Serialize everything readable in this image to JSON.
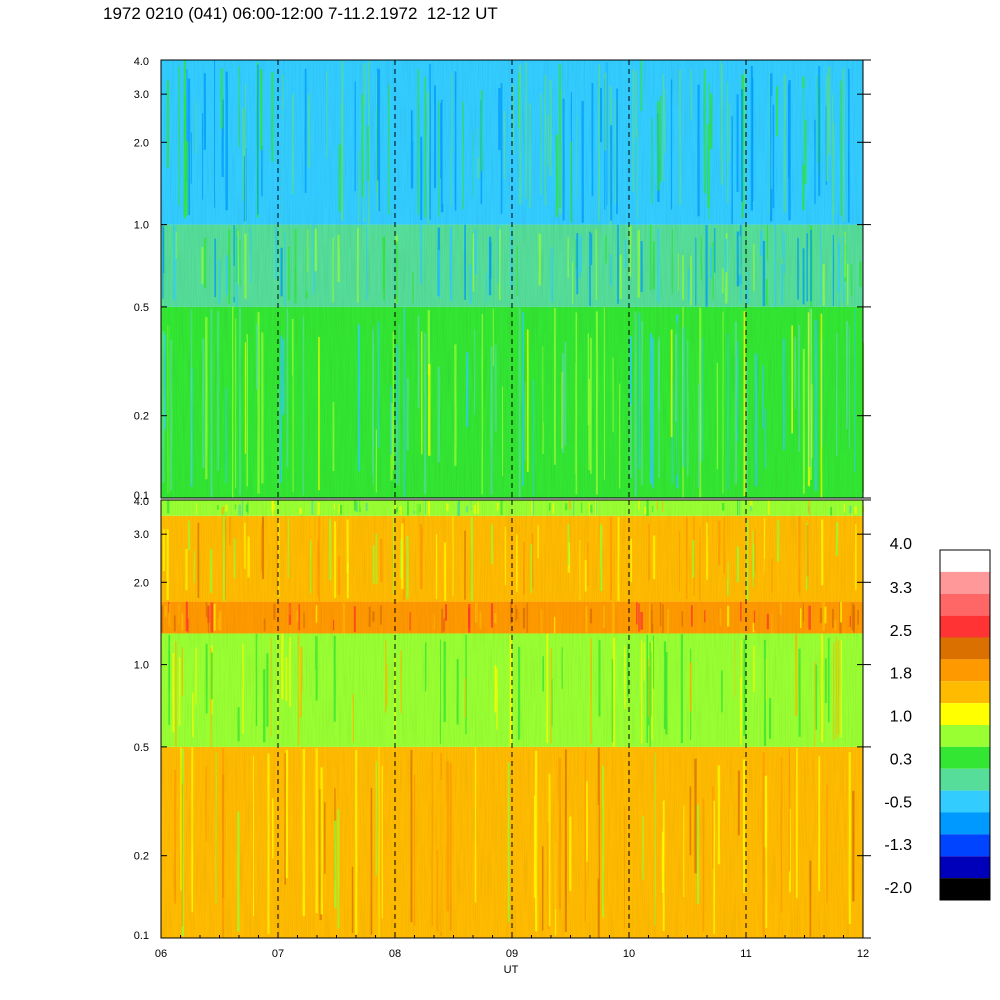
{
  "title": "1972 0210 (041) 06:00-12:00 7-11.2.1972  12-12 UT",
  "chart_data": [
    {
      "type": "heatmap",
      "panel": "top",
      "x_range": [
        6,
        12
      ],
      "y_scale": "log",
      "y_range": [
        0.1,
        4.0
      ],
      "y_ticks": [
        "0.1",
        "0.2",
        "0.5",
        "1.0",
        "2.0",
        "3.0",
        "4.0"
      ],
      "y_tick_values": [
        0.1,
        0.2,
        0.5,
        1.0,
        2.0,
        3.0,
        4.0
      ],
      "vertical_reference_lines_at": [
        7,
        8,
        9,
        10,
        11
      ],
      "dominant_level_by_band": [
        {
          "freq_from": 0.1,
          "freq_to": 0.5,
          "level": 0.3
        },
        {
          "freq_from": 0.5,
          "freq_to": 1.0,
          "level": 0.0
        },
        {
          "freq_from": 1.0,
          "freq_to": 4.0,
          "level": -0.2
        }
      ]
    },
    {
      "type": "heatmap",
      "panel": "bottom",
      "x_range": [
        6,
        12
      ],
      "y_scale": "log",
      "y_range": [
        0.1,
        4.0
      ],
      "y_ticks": [
        "0.1",
        "0.2",
        "0.5",
        "1.0",
        "2.0",
        "3.0",
        "4.0"
      ],
      "y_tick_values": [
        0.1,
        0.2,
        0.5,
        1.0,
        2.0,
        3.0,
        4.0
      ],
      "vertical_reference_lines_at": [
        7,
        8,
        9,
        10,
        11
      ],
      "dominant_level_by_band": [
        {
          "freq_from": 0.1,
          "freq_to": 0.5,
          "level": 1.6
        },
        {
          "freq_from": 0.5,
          "freq_to": 1.3,
          "level": 1.0
        },
        {
          "freq_from": 1.3,
          "freq_to": 1.7,
          "level": 2.0
        },
        {
          "freq_from": 1.7,
          "freq_to": 3.5,
          "level": 1.5
        },
        {
          "freq_from": 3.5,
          "freq_to": 4.0,
          "level": 0.7
        }
      ]
    }
  ],
  "x_axis": {
    "label": "UT",
    "ticks": [
      "06",
      "07",
      "08",
      "09",
      "10",
      "11",
      "12"
    ],
    "tick_values": [
      6,
      7,
      8,
      9,
      10,
      11,
      12
    ]
  },
  "colorbar": {
    "labels": [
      "4.0",
      "3.3",
      "2.5",
      "1.8",
      "1.0",
      "0.3",
      "-0.5",
      "-1.3",
      "-2.0"
    ],
    "colors_top_to_bottom": [
      "#ffffff",
      "#ff9999",
      "#ff6666",
      "#ff3333",
      "#d97000",
      "#ff9900",
      "#ffbb00",
      "#ffff00",
      "#99ff33",
      "#33e633",
      "#55dd99",
      "#33ccff",
      "#0099ff",
      "#0044ff",
      "#0000bb",
      "#000000"
    ]
  }
}
